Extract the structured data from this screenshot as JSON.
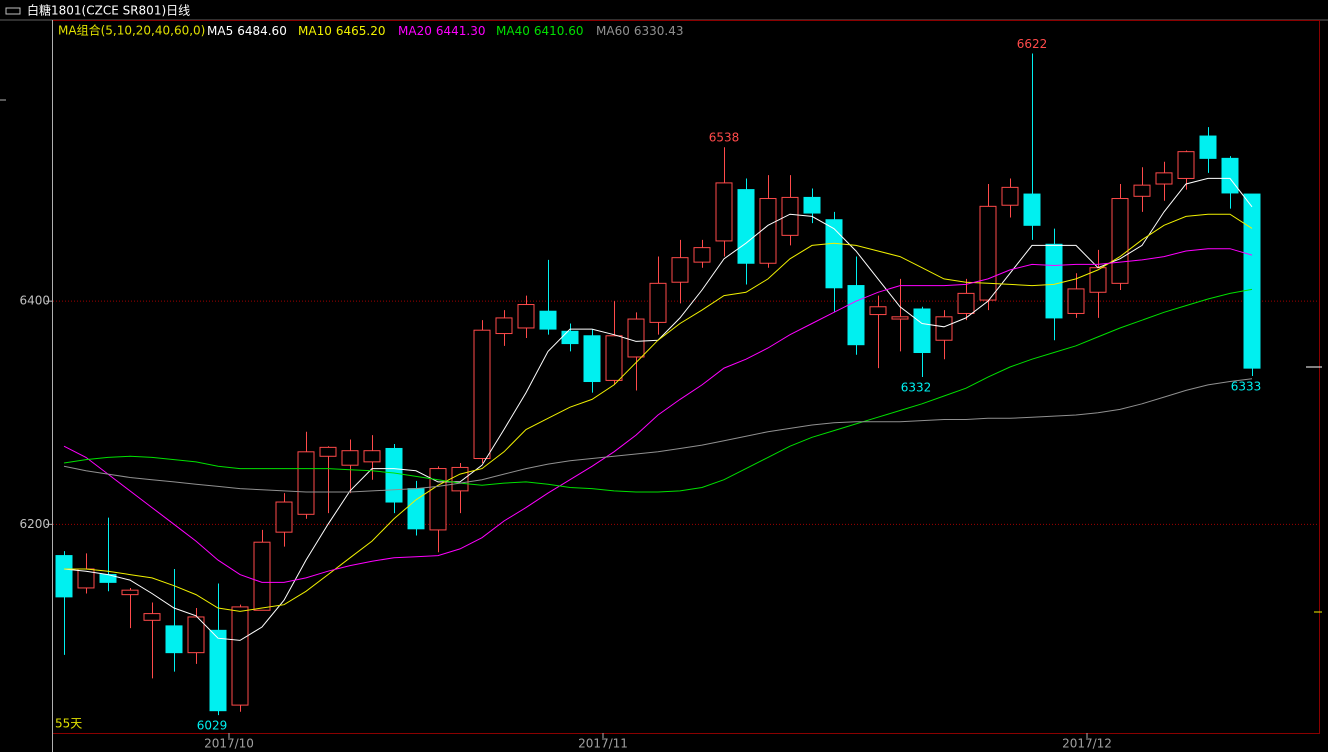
{
  "chart_data": {
    "type": "candlestick",
    "title": "白糖1801(CZCE SR801)日线",
    "legend_title": "MA组合(5,10,20,40,60,0)",
    "period_label": "55天",
    "ylim": [
      6013,
      6652
    ],
    "yticks": [
      6200,
      6400
    ],
    "grid": true,
    "up_color": "#ff4a4a",
    "down_color": "#00f0f0",
    "open": [
      6172,
      6143,
      6155,
      6137,
      6114,
      6109,
      6085,
      6105,
      6038,
      6123,
      6193,
      6209,
      6261,
      6253,
      6256,
      6268,
      6232,
      6195,
      6230,
      6259,
      6371,
      6376,
      6391,
      6373,
      6369,
      6329,
      6350,
      6381,
      6417,
      6435,
      6454,
      6500,
      6434,
      6459,
      6493,
      6473,
      6414,
      6388,
      6384,
      6393,
      6365,
      6389,
      6401,
      6486,
      6496,
      6451,
      6389,
      6408,
      6416,
      6494,
      6505,
      6510,
      6548,
      6528,
      6496
    ],
    "high": [
      6176,
      6174,
      6206,
      6143,
      6130,
      6160,
      6125,
      6147,
      6128,
      6195,
      6228,
      6283,
      6270,
      6276,
      6280,
      6272,
      6239,
      6252,
      6255,
      6383,
      6392,
      6405,
      6437,
      6380,
      6375,
      6400,
      6390,
      6440,
      6455,
      6455,
      6538,
      6510,
      6513,
      6513,
      6501,
      6480,
      6440,
      6405,
      6420,
      6395,
      6392,
      6420,
      6505,
      6510,
      6622,
      6465,
      6425,
      6446,
      6505,
      6520,
      6525,
      6535,
      6556,
      6530,
      6496
    ],
    "low": [
      6083,
      6138,
      6140,
      6107,
      6062,
      6068,
      6075,
      6029,
      6032,
      6123,
      6180,
      6205,
      6210,
      6228,
      6240,
      6210,
      6190,
      6175,
      6210,
      6255,
      6360,
      6367,
      6370,
      6355,
      6318,
      6325,
      6320,
      6370,
      6398,
      6430,
      6440,
      6415,
      6430,
      6450,
      6470,
      6390,
      6352,
      6340,
      6355,
      6332,
      6348,
      6383,
      6392,
      6475,
      6455,
      6365,
      6385,
      6385,
      6410,
      6480,
      6490,
      6500,
      6515,
      6483,
      6333
    ],
    "close": [
      6135,
      6160,
      6148,
      6141,
      6120,
      6085,
      6117,
      6033,
      6126,
      6184,
      6220,
      6265,
      6269,
      6266,
      6266,
      6220,
      6196,
      6250,
      6251,
      6374,
      6385,
      6397,
      6375,
      6362,
      6328,
      6369,
      6384,
      6416,
      6439,
      6448,
      6506,
      6434,
      6492,
      6493,
      6479,
      6412,
      6361,
      6395,
      6386,
      6354,
      6386,
      6407,
      6485,
      6502,
      6468,
      6385,
      6411,
      6430,
      6492,
      6504,
      6515,
      6534,
      6528,
      6497,
      6340
    ],
    "labeled_highs": [
      30,
      44
    ],
    "labeled_lows": [
      7,
      39,
      54
    ],
    "month_labels": [
      {
        "value": 7.5,
        "label": "2017/10"
      },
      {
        "value": 24.5,
        "label": "2017/11"
      },
      {
        "value": 46.5,
        "label": "2017/12"
      }
    ],
    "series": [
      {
        "name": "MA5",
        "color": "#ffffff",
        "value_label": "6484.60",
        "values": [
          6160,
          6158,
          6155,
          6150,
          6138,
          6125,
          6118,
          6098,
          6096,
          6108,
          6132,
          6168,
          6200,
          6230,
          6250,
          6250,
          6248,
          6238,
          6238,
          6253,
          6285,
          6318,
          6355,
          6375,
          6375,
          6370,
          6364,
          6365,
          6385,
          6410,
          6438,
          6452,
          6468,
          6478,
          6476,
          6465,
          6445,
          6420,
          6395,
          6380,
          6377,
          6385,
          6400,
          6425,
          6450,
          6450,
          6450,
          6430,
          6438,
          6450,
          6480,
          6505,
          6510,
          6510,
          6484.6
        ]
      },
      {
        "name": "MA10",
        "color": "#f0f000",
        "value_label": "6465.20",
        "values": [
          6160,
          6160,
          6158,
          6155,
          6152,
          6145,
          6137,
          6125,
          6122,
          6125,
          6128,
          6140,
          6155,
          6170,
          6185,
          6205,
          6222,
          6235,
          6245,
          6250,
          6265,
          6285,
          6295,
          6305,
          6312,
          6325,
          6345,
          6365,
          6380,
          6392,
          6405,
          6408,
          6420,
          6438,
          6450,
          6452,
          6450,
          6445,
          6440,
          6430,
          6420,
          6417,
          6416,
          6415,
          6414,
          6415,
          6420,
          6428,
          6440,
          6455,
          6468,
          6476,
          6478,
          6478,
          6465.2
        ]
      },
      {
        "name": "MA20",
        "color": "#ff00ff",
        "value_label": "6441.30",
        "values": [
          6270,
          6260,
          6245,
          6230,
          6215,
          6200,
          6185,
          6168,
          6155,
          6148,
          6148,
          6152,
          6158,
          6163,
          6167,
          6170,
          6171,
          6172,
          6178,
          6188,
          6203,
          6215,
          6228,
          6240,
          6252,
          6265,
          6280,
          6298,
          6312,
          6325,
          6340,
          6348,
          6358,
          6370,
          6380,
          6390,
          6400,
          6408,
          6414,
          6414,
          6414,
          6415,
          6420,
          6428,
          6433,
          6432,
          6433,
          6433,
          6435,
          6437,
          6440,
          6445,
          6447,
          6447,
          6441.3
        ]
      },
      {
        "name": "MA40",
        "color": "#00e000",
        "value_label": "6410.60",
        "values": [
          6255,
          6258,
          6260,
          6261,
          6260,
          6258,
          6256,
          6252,
          6250,
          6250,
          6250,
          6250,
          6250,
          6249,
          6248,
          6246,
          6243,
          6240,
          6237,
          6235,
          6237,
          6238,
          6236,
          6233,
          6232,
          6230,
          6229,
          6229,
          6230,
          6233,
          6240,
          6250,
          6260,
          6270,
          6278,
          6284,
          6290,
          6296,
          6302,
          6308,
          6315,
          6322,
          6332,
          6341,
          6348,
          6354,
          6360,
          6368,
          6376,
          6383,
          6390,
          6396,
          6402,
          6407,
          6410.6
        ]
      },
      {
        "name": "MA60",
        "color": "#909090",
        "value_label": "6330.43",
        "values": [
          6252,
          6248,
          6245,
          6242,
          6240,
          6238,
          6236,
          6234,
          6232,
          6231,
          6230,
          6229,
          6229,
          6229,
          6230,
          6231,
          6232,
          6234,
          6237,
          6240,
          6245,
          6250,
          6254,
          6257,
          6259,
          6261,
          6263,
          6265,
          6268,
          6271,
          6275,
          6279,
          6283,
          6286,
          6289,
          6291,
          6292,
          6292,
          6292,
          6293,
          6294,
          6294,
          6295,
          6295,
          6296,
          6297,
          6298,
          6300,
          6303,
          6308,
          6314,
          6320,
          6325,
          6328,
          6330.43
        ]
      }
    ]
  }
}
